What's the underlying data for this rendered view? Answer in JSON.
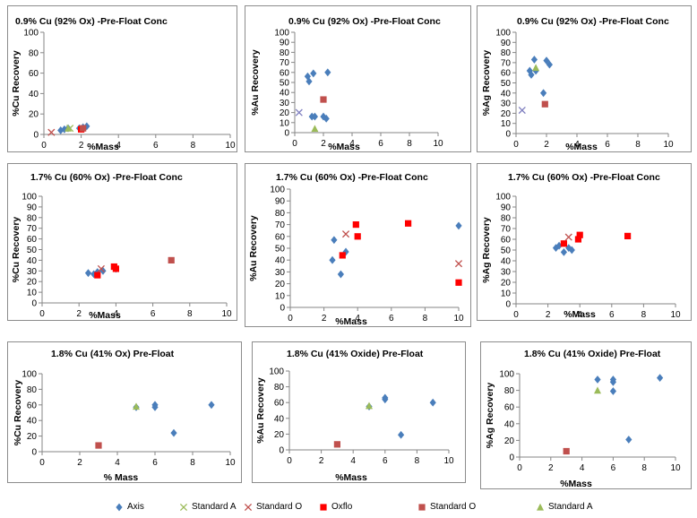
{
  "chart_data": [
    {
      "title": "0.9% Cu (92% Ox) -Pre-Float Conc",
      "type": "scatter",
      "xlabel": "%Mass",
      "ylabel": "%Cu Recovery",
      "xlim": [
        0,
        10
      ],
      "ylim": [
        0,
        100
      ],
      "xticks": [
        0,
        2,
        4,
        6,
        8,
        10
      ],
      "yticks": [
        0,
        20,
        40,
        60,
        80,
        100
      ],
      "series": [
        {
          "name": "Axis",
          "marker": "diamond",
          "color": "#4a7ebb",
          "points": [
            [
              0.9,
              4
            ],
            [
              1.1,
              5
            ],
            [
              1.3,
              6
            ],
            [
              1.9,
              6
            ],
            [
              2.1,
              7
            ],
            [
              2.3,
              8
            ]
          ]
        },
        {
          "name": "Standard A",
          "marker": "x",
          "color": "#9bbb59",
          "points": [
            [
              1.4,
              6
            ]
          ]
        },
        {
          "name": "Standard O",
          "marker": "x",
          "color": "#c0504d",
          "points": [
            [
              0.4,
              2
            ]
          ]
        },
        {
          "name": "Oxflo",
          "marker": "square",
          "color": "#ff0000",
          "points": [
            [
              2.0,
              5
            ]
          ]
        },
        {
          "name": "Standard O",
          "marker": "square",
          "color": "#c0504d",
          "points": [
            [
              2.1,
              6
            ]
          ]
        },
        {
          "name": "Standard A",
          "marker": "triangle",
          "color": "#9bbb59",
          "points": [
            [
              1.3,
              6
            ]
          ]
        }
      ]
    },
    {
      "title": "0.9% Cu (92% Ox) -Pre-Float Conc",
      "type": "scatter",
      "xlabel": "%Mass",
      "ylabel": "%Au Recovery",
      "xlim": [
        0,
        10
      ],
      "ylim": [
        0,
        100
      ],
      "xticks": [
        0,
        2,
        4,
        6,
        8,
        10
      ],
      "yticks": [
        0,
        10,
        20,
        30,
        40,
        50,
        60,
        70,
        80,
        90,
        100
      ],
      "series": [
        {
          "name": "Axis",
          "marker": "diamond",
          "color": "#4a7ebb",
          "points": [
            [
              0.9,
              56
            ],
            [
              1.0,
              51
            ],
            [
              1.3,
              59
            ],
            [
              2.3,
              60
            ],
            [
              1.2,
              16
            ],
            [
              1.4,
              16
            ],
            [
              2.0,
              16
            ],
            [
              2.2,
              14
            ]
          ]
        },
        {
          "name": "Standard O",
          "marker": "x",
          "color": "#8080c0",
          "points": [
            [
              0.3,
              20
            ]
          ]
        },
        {
          "name": "Standard O",
          "marker": "square",
          "color": "#c0504d",
          "points": [
            [
              2.0,
              33
            ]
          ]
        },
        {
          "name": "Standard A",
          "marker": "triangle",
          "color": "#9bbb59",
          "points": [
            [
              1.4,
              4
            ]
          ]
        }
      ]
    },
    {
      "title": "0.9% Cu (92% Ox) -Pre-Float Conc",
      "type": "scatter",
      "xlabel": "%Mass",
      "ylabel": "%Ag Recovery",
      "xlim": [
        0,
        10
      ],
      "ylim": [
        0,
        100
      ],
      "xticks": [
        0,
        2,
        4,
        6,
        8,
        10
      ],
      "yticks": [
        0,
        10,
        20,
        30,
        40,
        50,
        60,
        70,
        80,
        90,
        100
      ],
      "series": [
        {
          "name": "Axis",
          "marker": "diamond",
          "color": "#4a7ebb",
          "points": [
            [
              0.9,
              62
            ],
            [
              1.0,
              58
            ],
            [
              1.2,
              73
            ],
            [
              1.3,
              62
            ],
            [
              1.8,
              40
            ],
            [
              2.0,
              72
            ],
            [
              2.2,
              68
            ]
          ]
        },
        {
          "name": "Standard O",
          "marker": "x",
          "color": "#8080c0",
          "points": [
            [
              0.4,
              23
            ]
          ]
        },
        {
          "name": "Standard O",
          "marker": "square",
          "color": "#c0504d",
          "points": [
            [
              1.9,
              29
            ]
          ]
        },
        {
          "name": "Standard A",
          "marker": "triangle",
          "color": "#9bbb59",
          "points": [
            [
              1.3,
              65
            ]
          ]
        }
      ]
    },
    {
      "title": "1.7% Cu (60% Ox) -Pre-Float Conc",
      "type": "scatter",
      "xlabel": "%Mass",
      "ylabel": "%Cu Recovery",
      "xlim": [
        0,
        10
      ],
      "ylim": [
        0,
        100
      ],
      "xticks": [
        0,
        2,
        4,
        6,
        8,
        10
      ],
      "yticks": [
        0,
        10,
        20,
        30,
        40,
        50,
        60,
        70,
        80,
        90,
        100
      ],
      "series": [
        {
          "name": "Axis",
          "marker": "diamond",
          "color": "#4a7ebb",
          "points": [
            [
              2.5,
              28
            ],
            [
              2.8,
              27
            ],
            [
              3.0,
              29
            ],
            [
              3.3,
              30
            ],
            [
              4.0,
              32
            ]
          ]
        },
        {
          "name": "Standard O",
          "marker": "x",
          "color": "#c0504d",
          "points": [
            [
              3.2,
              32
            ]
          ]
        },
        {
          "name": "Oxflo",
          "marker": "square",
          "color": "#ff0000",
          "points": [
            [
              3.0,
              26
            ],
            [
              4.0,
              32
            ],
            [
              3.9,
              34
            ]
          ]
        },
        {
          "name": "Standard O",
          "marker": "square",
          "color": "#c0504d",
          "points": [
            [
              7.0,
              40
            ]
          ]
        }
      ]
    },
    {
      "title": "1.7% Cu (60% Ox) -Pre-Float Conc",
      "type": "scatter",
      "xlabel": "%Mass",
      "ylabel": "%Au Recovery",
      "xlim": [
        0,
        10
      ],
      "ylim": [
        0,
        100
      ],
      "xticks": [
        0,
        2,
        4,
        6,
        8,
        10
      ],
      "yticks": [
        0,
        10,
        20,
        30,
        40,
        50,
        60,
        70,
        80,
        90,
        100
      ],
      "series": [
        {
          "name": "Axis",
          "marker": "diamond",
          "color": "#4a7ebb",
          "points": [
            [
              2.5,
              40
            ],
            [
              2.6,
              57
            ],
            [
              3.0,
              28
            ],
            [
              3.3,
              47
            ],
            [
              10.0,
              69
            ]
          ]
        },
        {
          "name": "Standard O",
          "marker": "x",
          "color": "#c0504d",
          "points": [
            [
              3.3,
              62
            ],
            [
              10.0,
              37
            ]
          ]
        },
        {
          "name": "Oxflo",
          "marker": "square",
          "color": "#ff0000",
          "points": [
            [
              3.1,
              44
            ],
            [
              3.9,
              70
            ],
            [
              4.0,
              60
            ],
            [
              7.0,
              71
            ],
            [
              10.0,
              21
            ]
          ]
        }
      ]
    },
    {
      "title": "1.7% Cu (60% Ox) -Pre-Float Conc",
      "type": "scatter",
      "xlabel": "%Mass",
      "ylabel": "%Ag Recovery",
      "xlim": [
        0,
        10
      ],
      "ylim": [
        0,
        100
      ],
      "xticks": [
        0,
        2,
        4,
        6,
        8,
        10
      ],
      "yticks": [
        0,
        10,
        20,
        30,
        40,
        50,
        60,
        70,
        80,
        90,
        100
      ],
      "series": [
        {
          "name": "Axis",
          "marker": "diamond",
          "color": "#4a7ebb",
          "points": [
            [
              2.5,
              52
            ],
            [
              2.7,
              54
            ],
            [
              3.0,
              48
            ],
            [
              3.3,
              52
            ],
            [
              3.5,
              50
            ]
          ]
        },
        {
          "name": "Standard O",
          "marker": "x",
          "color": "#c0504d",
          "points": [
            [
              3.3,
              62
            ]
          ]
        },
        {
          "name": "Oxflo",
          "marker": "square",
          "color": "#ff0000",
          "points": [
            [
              3.0,
              56
            ],
            [
              3.9,
              60
            ],
            [
              4.0,
              64
            ],
            [
              7.0,
              63
            ]
          ]
        }
      ]
    },
    {
      "title": "1.8% Cu (41% Ox) Pre-Float",
      "type": "scatter",
      "xlabel": "% Mass",
      "ylabel": "%Cu Recovery",
      "xlim": [
        0,
        10
      ],
      "ylim": [
        0,
        100
      ],
      "xticks": [
        0,
        2,
        4,
        6,
        8,
        10
      ],
      "yticks": [
        0,
        20,
        40,
        60,
        80,
        100
      ],
      "series": [
        {
          "name": "Axis",
          "marker": "diamond",
          "color": "#4a7ebb",
          "points": [
            [
              5.0,
              57
            ],
            [
              6.0,
              60
            ],
            [
              6.0,
              57
            ],
            [
              7.0,
              24
            ],
            [
              9.0,
              60
            ]
          ]
        },
        {
          "name": "Standard O",
          "marker": "square",
          "color": "#c0504d",
          "points": [
            [
              3.0,
              8
            ]
          ]
        },
        {
          "name": "Standard A",
          "marker": "triangle",
          "color": "#9bbb59",
          "points": [
            [
              5.0,
              58
            ]
          ]
        }
      ]
    },
    {
      "title": "1.8% Cu (41% Oxide) Pre-Float",
      "type": "scatter",
      "xlabel": "%Mass",
      "ylabel": "%Au Recovery",
      "xlim": [
        0,
        10
      ],
      "ylim": [
        0,
        100
      ],
      "xticks": [
        0,
        2,
        4,
        6,
        8,
        10
      ],
      "yticks": [
        0,
        20,
        40,
        60,
        80,
        100
      ],
      "series": [
        {
          "name": "Axis",
          "marker": "diamond",
          "color": "#4a7ebb",
          "points": [
            [
              5.0,
              55
            ],
            [
              6.0,
              66
            ],
            [
              6.0,
              64
            ],
            [
              7.0,
              19
            ],
            [
              9.0,
              60
            ]
          ]
        },
        {
          "name": "Standard O",
          "marker": "square",
          "color": "#c0504d",
          "points": [
            [
              3.0,
              7
            ]
          ]
        },
        {
          "name": "Standard A",
          "marker": "triangle",
          "color": "#9bbb59",
          "points": [
            [
              5.0,
              56
            ]
          ]
        }
      ]
    },
    {
      "title": "1.8% Cu (41% Oxide) Pre-Float",
      "type": "scatter",
      "xlabel": "%Mass",
      "ylabel": "%Ag Recovery",
      "xlim": [
        0,
        10
      ],
      "ylim": [
        0,
        100
      ],
      "xticks": [
        0,
        2,
        4,
        6,
        8,
        10
      ],
      "yticks": [
        0,
        20,
        40,
        60,
        80,
        100
      ],
      "series": [
        {
          "name": "Axis",
          "marker": "diamond",
          "color": "#4a7ebb",
          "points": [
            [
              5.0,
              93
            ],
            [
              6.0,
              93
            ],
            [
              6.0,
              90
            ],
            [
              6.0,
              79
            ],
            [
              7.0,
              21
            ],
            [
              9.0,
              95
            ]
          ]
        },
        {
          "name": "Standard O",
          "marker": "square",
          "color": "#c0504d",
          "points": [
            [
              3.0,
              7
            ]
          ]
        },
        {
          "name": "Standard A",
          "marker": "triangle",
          "color": "#9bbb59",
          "points": [
            [
              5.0,
              80
            ]
          ]
        }
      ]
    }
  ],
  "legend": {
    "items": [
      {
        "label": "Axis",
        "marker": "diamond",
        "color": "#4a7ebb"
      },
      {
        "label": "Standard A",
        "marker": "x",
        "color": "#9bbb59"
      },
      {
        "label": "Standard O",
        "marker": "x",
        "color": "#c0504d"
      },
      {
        "label": "Oxflo",
        "marker": "square",
        "color": "#ff0000"
      },
      {
        "label": "Standard O",
        "marker": "square",
        "color": "#c0504d"
      },
      {
        "label": "Standard A",
        "marker": "triangle",
        "color": "#9bbb59"
      }
    ]
  }
}
